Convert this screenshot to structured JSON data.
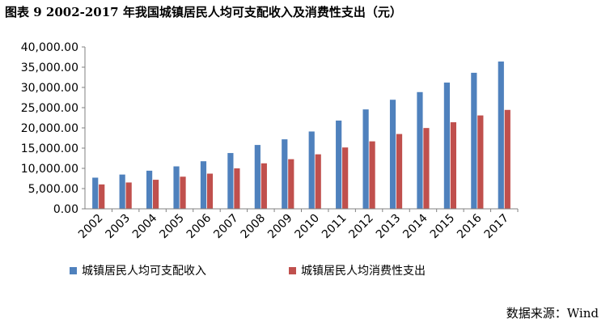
{
  "title": "图表 9 2002-2017 年我国城镇居民人均可支配收入及消费性支出（元）",
  "source": "数据来源：Wind",
  "colors": {
    "series1": "#4F81BD",
    "series2": "#C0504D",
    "axis": "#808080",
    "text": "#000000"
  },
  "chart_data": {
    "type": "bar",
    "title": "图表 9 2002-2017 年我国城镇居民人均可支配收入及消费性支出（元）",
    "categories": [
      "2002",
      "2003",
      "2004",
      "2005",
      "2006",
      "2007",
      "2008",
      "2009",
      "2010",
      "2011",
      "2012",
      "2013",
      "2014",
      "2015",
      "2016",
      "2017"
    ],
    "series": [
      {
        "name": "城镇居民人均可支配收入",
        "values": [
          7703,
          8472,
          9422,
          10493,
          11759,
          13786,
          15781,
          17175,
          19109,
          21810,
          24565,
          26955,
          28844,
          31195,
          33616,
          36396
        ]
      },
      {
        "name": "城镇居民人均消费性支出",
        "values": [
          6030,
          6511,
          7182,
          7943,
          8697,
          9997,
          11243,
          12265,
          13471,
          15161,
          16674,
          18488,
          19968,
          21392,
          23079,
          24445
        ]
      }
    ],
    "ylim": [
      0,
      40000
    ],
    "yticks": [
      "0.00",
      "5,000.00",
      "10,000.00",
      "15,000.00",
      "20,000.00",
      "25,000.00",
      "30,000.00",
      "35,000.00",
      "40,000.00"
    ],
    "xlabel": "",
    "ylabel": "",
    "grid": false,
    "legend": "bottom"
  }
}
